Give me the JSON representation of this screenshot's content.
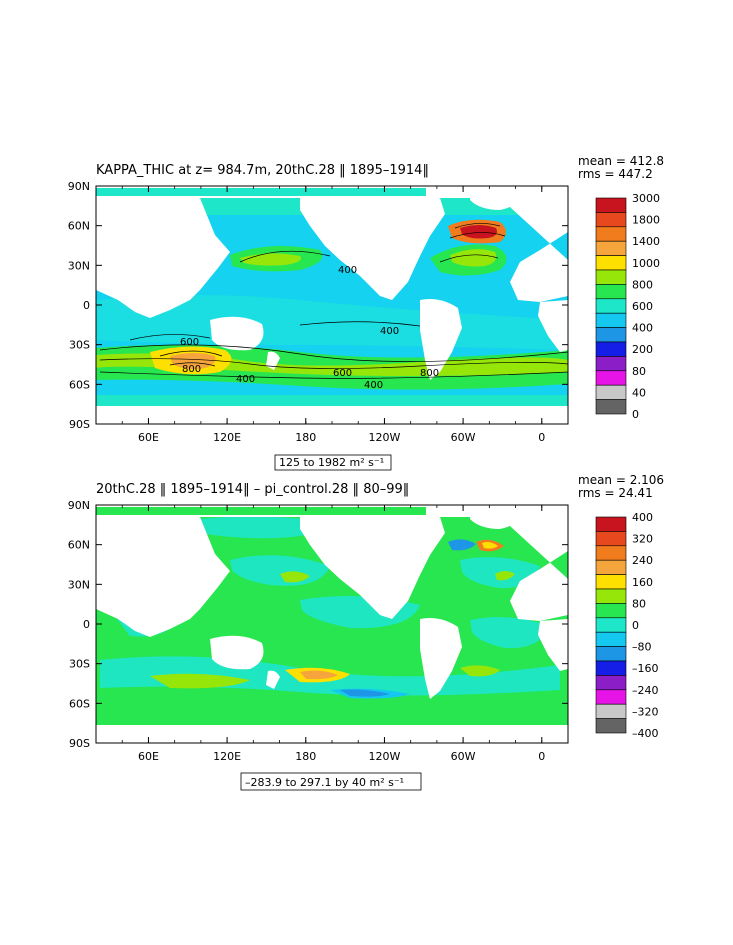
{
  "chart_data": [
    {
      "type": "heatmap",
      "title": "KAPPA_THIC at z= 984.7m, 20thC.28 ‖ 1895–1914‖",
      "stats": {
        "mean": "mean = 412.8",
        "rms": "rms = 447.2"
      },
      "range_label": "125 to 1982",
      "units": "m² s⁻¹",
      "x_ticks": [
        "60E",
        "120E",
        "180",
        "120W",
        "60W",
        "0"
      ],
      "y_ticks": [
        "90N",
        "60N",
        "30N",
        "0",
        "30S",
        "60S",
        "90S"
      ],
      "colorbar_levels": [
        "3000",
        "1800",
        "1400",
        "1000",
        "800",
        "600",
        "400",
        "200",
        "80",
        "40",
        "0"
      ],
      "colorbar_colors": [
        "#c8141e",
        "#e8481e",
        "#f07c1e",
        "#f5a53c",
        "#fde000",
        "#96e60a",
        "#28e650",
        "#1ee6c8",
        "#14c8f0",
        "#1e96e6",
        "#141ee6",
        "#8c1ec8",
        "#e614e6",
        "#c8c8c8",
        "#646464"
      ],
      "contour_labels": [
        "400",
        "600",
        "800",
        "400",
        "600",
        "800",
        "400",
        "400"
      ]
    },
    {
      "type": "heatmap",
      "title": "20thC.28 ‖ 1895–1914‖ – pi_control.28 ‖ 80–99‖",
      "stats": {
        "mean": "mean = 2.106",
        "rms": "rms = 24.41"
      },
      "range_label": "–283.9 to 297.1 by 40",
      "units": "m² s⁻¹",
      "x_ticks": [
        "60E",
        "120E",
        "180",
        "120W",
        "60W",
        "0"
      ],
      "y_ticks": [
        "90N",
        "60N",
        "30N",
        "0",
        "30S",
        "60S",
        "90S"
      ],
      "colorbar_levels": [
        "400",
        "320",
        "240",
        "160",
        "80",
        "0",
        "–80",
        "–160",
        "–240",
        "–320",
        "–400"
      ],
      "colorbar_colors": [
        "#c8141e",
        "#e8481e",
        "#f07c1e",
        "#f5a53c",
        "#fde000",
        "#96e60a",
        "#28e650",
        "#1ee6c8",
        "#14c8f0",
        "#1e96e6",
        "#141ee6",
        "#8c1ec8",
        "#e614e6",
        "#c8c8c8",
        "#646464"
      ]
    }
  ]
}
